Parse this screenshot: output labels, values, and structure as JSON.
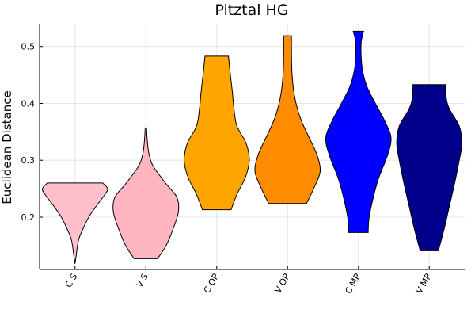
{
  "chart_data": {
    "type": "violin",
    "title": "Pitztal HG",
    "xlabel": "",
    "ylabel": "Euclidean Distance",
    "ylim": [
      0.108,
      0.54
    ],
    "yticks": [
      0.2,
      0.3,
      0.4,
      0.5
    ],
    "ytick_labels": [
      "0.2",
      "0.3",
      "0.4",
      "0.5"
    ],
    "grid": true,
    "legend": "none",
    "categories": [
      "C S",
      "V S",
      "C OP",
      "V OP",
      "C MP",
      "V MP"
    ],
    "series": [
      {
        "category": "C S",
        "color": "#FFC0CB",
        "profile": [
          [
            0.118,
            0.0
          ],
          [
            0.13,
            0.03
          ],
          [
            0.16,
            0.11
          ],
          [
            0.18,
            0.25
          ],
          [
            0.2,
            0.42
          ],
          [
            0.22,
            0.66
          ],
          [
            0.24,
            0.92
          ],
          [
            0.25,
            1.0
          ],
          [
            0.26,
            0.85
          ]
        ]
      },
      {
        "category": "V S",
        "color": "#FFB6C1",
        "profile": [
          [
            0.127,
            0.36
          ],
          [
            0.15,
            0.62
          ],
          [
            0.18,
            0.84
          ],
          [
            0.21,
            1.0
          ],
          [
            0.235,
            0.95
          ],
          [
            0.26,
            0.6
          ],
          [
            0.29,
            0.22
          ],
          [
            0.31,
            0.1
          ],
          [
            0.33,
            0.05
          ],
          [
            0.357,
            0.02
          ]
        ]
      },
      {
        "category": "C OP",
        "color": "#FFA500",
        "profile": [
          [
            0.213,
            0.44
          ],
          [
            0.24,
            0.62
          ],
          [
            0.27,
            0.88
          ],
          [
            0.3,
            1.0
          ],
          [
            0.33,
            0.9
          ],
          [
            0.36,
            0.62
          ],
          [
            0.39,
            0.53
          ],
          [
            0.42,
            0.48
          ],
          [
            0.45,
            0.42
          ],
          [
            0.483,
            0.36
          ]
        ]
      },
      {
        "category": "V OP",
        "color": "#FF8C00",
        "profile": [
          [
            0.224,
            0.58
          ],
          [
            0.25,
            0.8
          ],
          [
            0.28,
            1.0
          ],
          [
            0.31,
            0.9
          ],
          [
            0.34,
            0.66
          ],
          [
            0.37,
            0.42
          ],
          [
            0.4,
            0.26
          ],
          [
            0.43,
            0.17
          ],
          [
            0.46,
            0.13
          ],
          [
            0.49,
            0.12
          ],
          [
            0.519,
            0.12
          ]
        ]
      },
      {
        "category": "C MP",
        "color": "#0000FF",
        "profile": [
          [
            0.173,
            0.3
          ],
          [
            0.2,
            0.33
          ],
          [
            0.24,
            0.48
          ],
          [
            0.27,
            0.63
          ],
          [
            0.31,
            0.9
          ],
          [
            0.34,
            1.0
          ],
          [
            0.37,
            0.8
          ],
          [
            0.4,
            0.52
          ],
          [
            0.43,
            0.26
          ],
          [
            0.46,
            0.12
          ],
          [
            0.49,
            0.08
          ],
          [
            0.51,
            0.09
          ],
          [
            0.527,
            0.16
          ]
        ]
      },
      {
        "category": "V MP",
        "color": "#00008B",
        "profile": [
          [
            0.141,
            0.28
          ],
          [
            0.18,
            0.46
          ],
          [
            0.22,
            0.62
          ],
          [
            0.26,
            0.78
          ],
          [
            0.3,
            0.92
          ],
          [
            0.33,
            1.0
          ],
          [
            0.36,
            0.92
          ],
          [
            0.39,
            0.62
          ],
          [
            0.41,
            0.52
          ],
          [
            0.433,
            0.5
          ]
        ]
      }
    ]
  }
}
